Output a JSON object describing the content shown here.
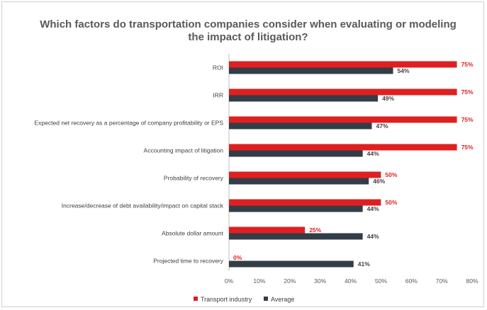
{
  "chart_data": {
    "type": "bar",
    "orientation": "horizontal",
    "title": [
      "Which factors do transportation companies consider when evaluating or modeling",
      "the impact of litigation?"
    ],
    "categories": [
      "ROI",
      "IRR",
      "Expected net recovery as a percentage of company profitability or EPS",
      "Accounting impact of litigation",
      "Probability of recovery",
      "Increase/decrease of debt availability/impact on capital stack",
      "Absolute dollar amount",
      "Projected time to recovery"
    ],
    "series": [
      {
        "name": "Transport industry",
        "color": "#e02020",
        "values": [
          75,
          75,
          75,
          75,
          50,
          50,
          25,
          0
        ],
        "labels": [
          "75%",
          "75%",
          "75%",
          "75%",
          "50%",
          "50%",
          "25%",
          "0%"
        ]
      },
      {
        "name": "Average",
        "color": "#333d47",
        "values": [
          54,
          49,
          47,
          44,
          46,
          44,
          44,
          41
        ],
        "labels": [
          "54%",
          "49%",
          "47%",
          "44%",
          "46%",
          "44%",
          "44%",
          "41%"
        ]
      }
    ],
    "xlim": [
      0,
      80
    ],
    "xticks": [
      "0%",
      "10%",
      "20%",
      "30%",
      "40%",
      "50%",
      "60%",
      "70%",
      "80%"
    ],
    "grid": false,
    "legend_position": "bottom"
  }
}
